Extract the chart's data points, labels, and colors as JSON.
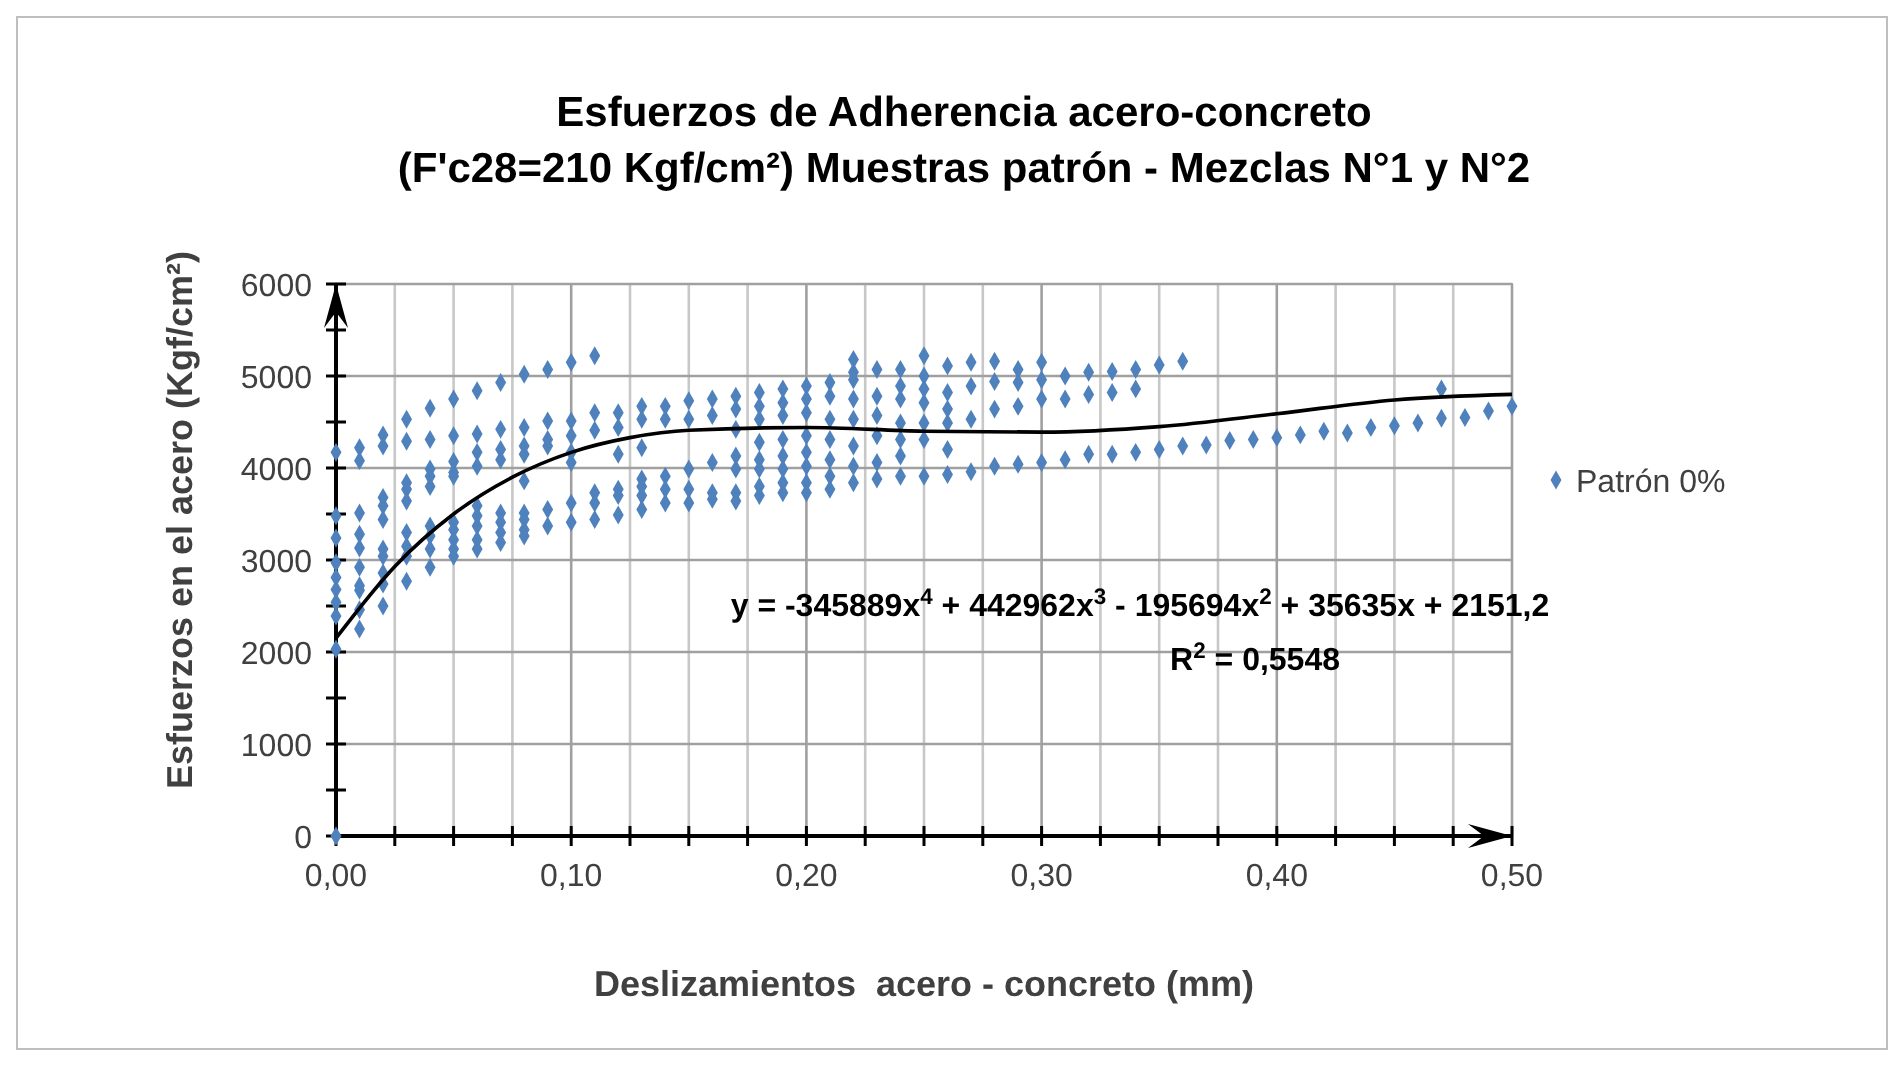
{
  "chart_data": {
    "type": "scatter",
    "title": "Esfuerzos de Adherencia acero-concreto\n(F'c28=210 Kgf/cm²) Muestras patrón - Mezclas N°1 y N°2",
    "xlabel": "Deslizamientos  acero - concreto (mm)",
    "ylabel": "Esfuerzos en el acero (Kgf/cm²)",
    "xlim": [
      0,
      0.5
    ],
    "ylim": [
      0,
      6000
    ],
    "xticks": [
      {
        "value": 0,
        "label": "0,00"
      },
      {
        "value": 0.025,
        "label": null
      },
      {
        "value": 0.05,
        "label": null
      },
      {
        "value": 0.075,
        "label": null
      },
      {
        "value": 0.1,
        "label": "0,10"
      },
      {
        "value": 0.125,
        "label": null
      },
      {
        "value": 0.15,
        "label": null
      },
      {
        "value": 0.175,
        "label": null
      },
      {
        "value": 0.2,
        "label": "0,20"
      },
      {
        "value": 0.225,
        "label": null
      },
      {
        "value": 0.25,
        "label": null
      },
      {
        "value": 0.275,
        "label": null
      },
      {
        "value": 0.3,
        "label": "0,30"
      },
      {
        "value": 0.325,
        "label": null
      },
      {
        "value": 0.35,
        "label": null
      },
      {
        "value": 0.375,
        "label": null
      },
      {
        "value": 0.4,
        "label": "0,40"
      },
      {
        "value": 0.425,
        "label": null
      },
      {
        "value": 0.45,
        "label": null
      },
      {
        "value": 0.475,
        "label": null
      },
      {
        "value": 0.5,
        "label": "0,50"
      }
    ],
    "yticks": [
      0,
      {
        "value": 500,
        "label": null
      },
      1000,
      {
        "value": 1500,
        "label": null
      },
      2000,
      {
        "value": 2500,
        "label": null
      },
      3000,
      {
        "value": 3500,
        "label": null
      },
      4000,
      {
        "value": 4500,
        "label": null
      },
      5000,
      {
        "value": 5500,
        "label": null
      },
      6000
    ],
    "grid": true,
    "legend": "right",
    "marker": "diamond",
    "annotations": [
      "y = -345889x$^{4}$ + 442962x$^{3}$ - 195694x$^{2}$ + 35635x + 2151,2",
      "R$^{2}$ = 0,5548"
    ],
    "series": [
      {
        "name": "Patrón 0%",
        "color": "#4f81bd",
        "x": [
          0,
          0,
          0,
          0,
          0,
          0,
          0,
          0,
          0,
          0,
          0.01,
          0.01,
          0.01,
          0.01,
          0.01,
          0.01,
          0.01,
          0.01,
          0.01,
          0.01,
          0.02,
          0.02,
          0.02,
          0.02,
          0.02,
          0.02,
          0.02,
          0.02,
          0.02,
          0.02,
          0.03,
          0.03,
          0.03,
          0.03,
          0.03,
          0.03,
          0.03,
          0.03,
          0.03,
          0.04,
          0.04,
          0.04,
          0.04,
          0.04,
          0.04,
          0.04,
          0.04,
          0.04,
          0.05,
          0.05,
          0.05,
          0.05,
          0.05,
          0.05,
          0.05,
          0.05,
          0.05,
          0.05,
          0.06,
          0.06,
          0.06,
          0.06,
          0.06,
          0.06,
          0.06,
          0.06,
          0.06,
          0.07,
          0.07,
          0.07,
          0.07,
          0.07,
          0.07,
          0.07,
          0.07,
          0.08,
          0.08,
          0.08,
          0.08,
          0.08,
          0.08,
          0.08,
          0.08,
          0.08,
          0.09,
          0.09,
          0.09,
          0.09,
          0.09,
          0.09,
          0.1,
          0.1,
          0.1,
          0.1,
          0.1,
          0.1,
          0.1,
          0.11,
          0.11,
          0.11,
          0.11,
          0.11,
          0.11,
          0.12,
          0.12,
          0.12,
          0.12,
          0.12,
          0.12,
          0.13,
          0.13,
          0.13,
          0.13,
          0.13,
          0.13,
          0.13,
          0.14,
          0.14,
          0.14,
          0.14,
          0.14,
          0.15,
          0.15,
          0.15,
          0.15,
          0.15,
          0.16,
          0.16,
          0.16,
          0.16,
          0.16,
          0.17,
          0.17,
          0.17,
          0.17,
          0.17,
          0.17,
          0.17,
          0.18,
          0.18,
          0.18,
          0.18,
          0.18,
          0.18,
          0.18,
          0.18,
          0.19,
          0.19,
          0.19,
          0.19,
          0.19,
          0.19,
          0.19,
          0.19,
          0.2,
          0.2,
          0.2,
          0.2,
          0.2,
          0.2,
          0.2,
          0.2,
          0.21,
          0.21,
          0.21,
          0.21,
          0.21,
          0.21,
          0.21,
          0.22,
          0.22,
          0.22,
          0.22,
          0.22,
          0.22,
          0.22,
          0.22,
          0.23,
          0.23,
          0.23,
          0.23,
          0.23,
          0.23,
          0.24,
          0.24,
          0.24,
          0.24,
          0.24,
          0.24,
          0.24,
          0.25,
          0.25,
          0.25,
          0.25,
          0.25,
          0.25,
          0.25,
          0.26,
          0.26,
          0.26,
          0.26,
          0.26,
          0.26,
          0.27,
          0.27,
          0.27,
          0.27,
          0.28,
          0.28,
          0.28,
          0.28,
          0.29,
          0.29,
          0.29,
          0.29,
          0.3,
          0.3,
          0.3,
          0.3,
          0.31,
          0.31,
          0.31,
          0.32,
          0.32,
          0.32,
          0.33,
          0.33,
          0.33,
          0.34,
          0.34,
          0.34,
          0.35,
          0.35,
          0.36,
          0.36,
          0.37,
          0.38,
          0.39,
          0.4,
          0.41,
          0.42,
          0.43,
          0.44,
          0.45,
          0.46,
          0.47,
          0.47,
          0.48,
          0.49,
          0.5
        ],
        "values": [
          4170,
          3480,
          3240,
          2970,
          2810,
          2680,
          2540,
          2390,
          2030,
          0,
          4220,
          4080,
          3510,
          3280,
          3130,
          2920,
          2720,
          2670,
          2460,
          2250,
          4360,
          4240,
          3680,
          3590,
          3440,
          3120,
          3040,
          2860,
          2740,
          2500,
          4530,
          4290,
          3840,
          3770,
          3640,
          3300,
          3150,
          3040,
          2770,
          4650,
          4310,
          3990,
          3910,
          3800,
          3370,
          3260,
          3120,
          2920,
          4750,
          4350,
          4070,
          3950,
          3910,
          3410,
          3330,
          3220,
          3120,
          3040,
          4840,
          4370,
          4170,
          4020,
          3590,
          3480,
          3370,
          3220,
          3120,
          4930,
          4420,
          4200,
          4090,
          3510,
          3410,
          3300,
          3190,
          5020,
          4440,
          4240,
          4150,
          3860,
          3510,
          3440,
          3330,
          3260,
          5070,
          4510,
          4310,
          4240,
          3550,
          3370,
          5150,
          4510,
          4350,
          4170,
          4060,
          3620,
          3410,
          5220,
          4600,
          4410,
          3730,
          3620,
          3440,
          4600,
          4440,
          4150,
          3770,
          3700,
          3490,
          4670,
          4530,
          4220,
          3880,
          3800,
          3700,
          3550,
          4670,
          4530,
          3910,
          3770,
          3620,
          4730,
          4530,
          3990,
          3770,
          3620,
          4750,
          4570,
          4060,
          3730,
          3660,
          4780,
          4640,
          4420,
          4130,
          3990,
          3730,
          3640,
          4820,
          4670,
          4530,
          4280,
          4090,
          3990,
          3800,
          3700,
          4860,
          4710,
          4570,
          4310,
          4130,
          3990,
          3840,
          3730,
          4890,
          4750,
          4600,
          4350,
          4170,
          4020,
          3840,
          3730,
          4930,
          4780,
          4530,
          4310,
          4090,
          3910,
          3770,
          5180,
          5040,
          4960,
          4750,
          4530,
          4240,
          4020,
          3840,
          5070,
          4780,
          4570,
          4350,
          4060,
          3880,
          5070,
          4890,
          4750,
          4490,
          4310,
          4130,
          3910,
          5220,
          5000,
          4860,
          4710,
          4490,
          4310,
          3910,
          5110,
          4820,
          4640,
          4490,
          4200,
          3930,
          5150,
          4890,
          4530,
          3960,
          5160,
          4940,
          4640,
          4020,
          5070,
          4930,
          4670,
          4040,
          5150,
          4960,
          4750,
          4060,
          5000,
          4750,
          4090,
          5040,
          4800,
          4150,
          5050,
          4820,
          4150,
          5070,
          4860,
          4170,
          5120,
          4200,
          5160,
          4240,
          4250,
          4300,
          4310,
          4330,
          4360,
          4400,
          4380,
          4440,
          4460,
          4490,
          4860,
          4540,
          4550,
          4620,
          4670
        ]
      },
      {
        "type": "line",
        "marker": "none",
        "color": "#000000",
        "x": [
          0,
          0.025,
          0.05,
          0.075,
          0.1,
          0.125,
          0.15,
          0.2,
          0.25,
          0.3,
          0.35,
          0.4,
          0.45,
          0.5
        ],
        "values": [
          2150,
          2930,
          3500,
          3900,
          4170,
          4330,
          4410,
          4440,
          4400,
          4390,
          4450,
          4590,
          4740,
          4800
        ]
      }
    ]
  }
}
